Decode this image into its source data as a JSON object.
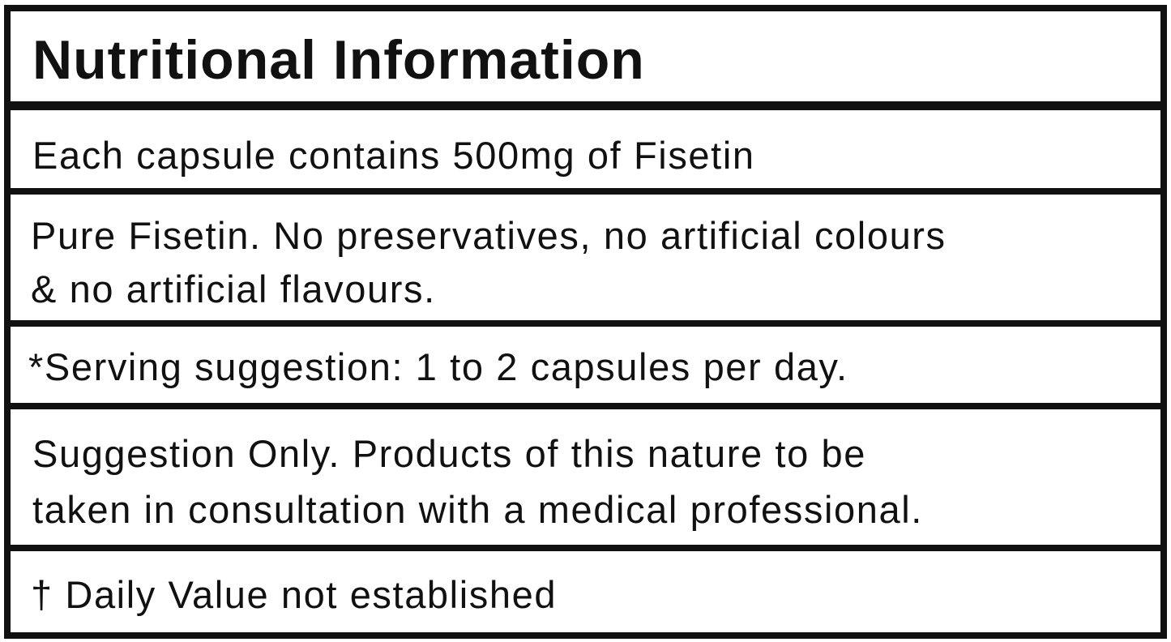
{
  "title": "Nutritional Information",
  "rows": [
    "Each capsule contains 500mg of Fisetin",
    "Pure Fisetin. No preservatives, no artificial colours",
    "& no artificial flavours.",
    "*Serving suggestion: 1 to 2 capsules per day.",
    "Suggestion Only. Products of this nature to be",
    "taken in consultation with a medical professional.",
    "† Daily Value not established"
  ]
}
